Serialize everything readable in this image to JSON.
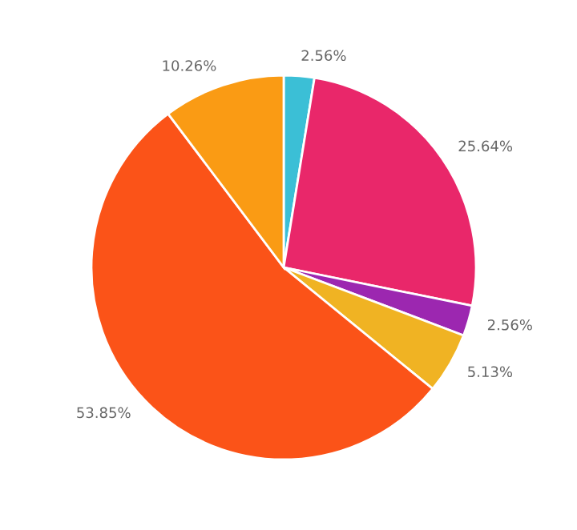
{
  "chart_data": {
    "type": "pie",
    "categories": [
      null,
      null,
      null,
      null,
      null,
      null
    ],
    "values": [
      2.56,
      25.64,
      2.56,
      5.13,
      53.85,
      10.26
    ],
    "colors": [
      "#3bbfd6",
      "#e9276a",
      "#9c27b0",
      "#f0b323",
      "#fb5318",
      "#fa9b14"
    ],
    "value_labels": [
      "2.56%",
      "25.64%",
      "2.56%",
      "5.13%",
      "53.85%",
      "10.26%"
    ]
  }
}
